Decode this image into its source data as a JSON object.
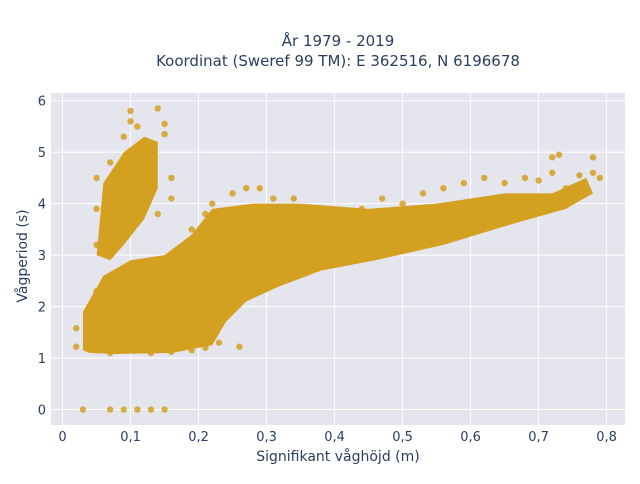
{
  "chart_data": {
    "type": "scatter",
    "title": "År 1979 - 2019",
    "subtitle": "Koordinat (Sweref 99 TM): E 362516, N 6196678",
    "xlabel": "Signifikant våghöjd (m)",
    "ylabel": "Vågperiod (s)",
    "xlim": [
      -0.017,
      0.827
    ],
    "ylim": [
      -0.3,
      6.15
    ],
    "xticks": [
      {
        "v": 0,
        "label": "0"
      },
      {
        "v": 0.1,
        "label": "0,1"
      },
      {
        "v": 0.2,
        "label": "0,2"
      },
      {
        "v": 0.3,
        "label": "0,3"
      },
      {
        "v": 0.4,
        "label": "0,4"
      },
      {
        "v": 0.5,
        "label": "0,5"
      },
      {
        "v": 0.6,
        "label": "0,6"
      },
      {
        "v": 0.7,
        "label": "0,7"
      },
      {
        "v": 0.8,
        "label": "0,8"
      }
    ],
    "yticks": [
      {
        "v": 0,
        "label": "0"
      },
      {
        "v": 1,
        "label": "1"
      },
      {
        "v": 2,
        "label": "2"
      },
      {
        "v": 3,
        "label": "3"
      },
      {
        "v": 4,
        "label": "4"
      },
      {
        "v": 5,
        "label": "5"
      },
      {
        "v": 6,
        "label": "6"
      }
    ],
    "grid": true,
    "marker_color": "#d4a020",
    "plot_bg": "#e5e5ee",
    "series": [
      {
        "values": [
          [
            0.03,
            0.0
          ],
          [
            0.07,
            0.0
          ],
          [
            0.09,
            0.0
          ],
          [
            0.11,
            0.0
          ],
          [
            0.13,
            0.0
          ],
          [
            0.15,
            0.0
          ],
          [
            0.02,
            1.58
          ],
          [
            0.02,
            1.22
          ],
          [
            0.04,
            1.85
          ],
          [
            0.05,
            2.3
          ],
          [
            0.05,
            3.2
          ],
          [
            0.05,
            3.9
          ],
          [
            0.05,
            4.5
          ],
          [
            0.07,
            4.8
          ],
          [
            0.07,
            3.6
          ],
          [
            0.07,
            3.0
          ],
          [
            0.08,
            4.2
          ],
          [
            0.09,
            4.6
          ],
          [
            0.09,
            5.3
          ],
          [
            0.1,
            5.8
          ],
          [
            0.1,
            5.6
          ],
          [
            0.11,
            5.5
          ],
          [
            0.11,
            4.9
          ],
          [
            0.12,
            5.2
          ],
          [
            0.13,
            4.7
          ],
          [
            0.13,
            5.0
          ],
          [
            0.14,
            5.85
          ],
          [
            0.15,
            5.55
          ],
          [
            0.15,
            5.35
          ],
          [
            0.16,
            4.5
          ],
          [
            0.16,
            4.1
          ],
          [
            0.14,
            3.8
          ],
          [
            0.07,
            1.1
          ],
          [
            0.1,
            1.15
          ],
          [
            0.13,
            1.1
          ],
          [
            0.16,
            1.12
          ],
          [
            0.19,
            1.15
          ],
          [
            0.21,
            1.2
          ],
          [
            0.08,
            1.6
          ],
          [
            0.11,
            1.8
          ],
          [
            0.14,
            2.1
          ],
          [
            0.17,
            1.7
          ],
          [
            0.2,
            1.6
          ],
          [
            0.23,
            1.3
          ],
          [
            0.26,
            1.22
          ],
          [
            0.09,
            2.5
          ],
          [
            0.12,
            2.7
          ],
          [
            0.15,
            2.8
          ],
          [
            0.18,
            3.0
          ],
          [
            0.2,
            2.6
          ],
          [
            0.23,
            3.2
          ],
          [
            0.21,
            3.8
          ],
          [
            0.19,
            3.5
          ],
          [
            0.22,
            4.0
          ],
          [
            0.25,
            4.2
          ],
          [
            0.27,
            4.3
          ],
          [
            0.29,
            4.3
          ],
          [
            0.31,
            4.1
          ],
          [
            0.34,
            4.1
          ],
          [
            0.24,
            2.3
          ],
          [
            0.27,
            2.5
          ],
          [
            0.3,
            2.6
          ],
          [
            0.33,
            2.8
          ],
          [
            0.36,
            2.9
          ],
          [
            0.39,
            3.0
          ],
          [
            0.28,
            3.3
          ],
          [
            0.32,
            3.6
          ],
          [
            0.36,
            3.8
          ],
          [
            0.4,
            3.7
          ],
          [
            0.44,
            3.9
          ],
          [
            0.47,
            4.1
          ],
          [
            0.42,
            3.1
          ],
          [
            0.45,
            3.2
          ],
          [
            0.48,
            3.3
          ],
          [
            0.51,
            3.4
          ],
          [
            0.54,
            3.5
          ],
          [
            0.57,
            3.6
          ],
          [
            0.5,
            4.0
          ],
          [
            0.53,
            4.2
          ],
          [
            0.56,
            4.3
          ],
          [
            0.59,
            4.4
          ],
          [
            0.62,
            4.5
          ],
          [
            0.65,
            4.4
          ],
          [
            0.6,
            3.7
          ],
          [
            0.63,
            3.8
          ],
          [
            0.66,
            3.9
          ],
          [
            0.69,
            4.0
          ],
          [
            0.72,
            4.1
          ],
          [
            0.74,
            4.3
          ],
          [
            0.68,
            4.5
          ],
          [
            0.7,
            4.45
          ],
          [
            0.72,
            4.6
          ],
          [
            0.76,
            4.55
          ],
          [
            0.78,
            4.6
          ],
          [
            0.79,
            4.5
          ],
          [
            0.72,
            4.9
          ],
          [
            0.73,
            4.95
          ],
          [
            0.78,
            4.9
          ],
          [
            0.75,
            4.25
          ],
          [
            0.77,
            4.3
          ]
        ]
      }
    ]
  }
}
